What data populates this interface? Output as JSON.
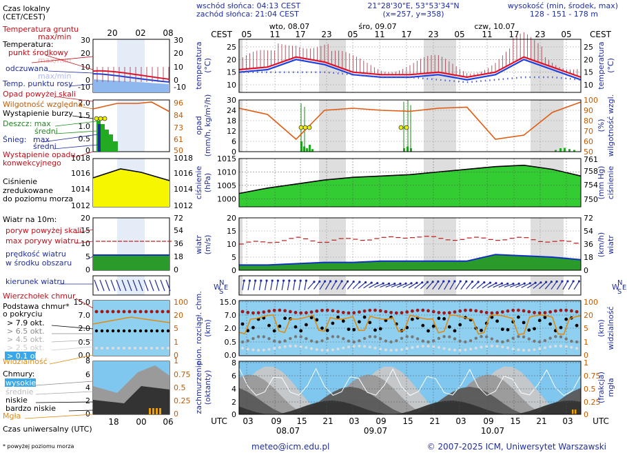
{
  "header": {
    "sunrise": "wschód słońca: 04:13 CEST",
    "sunset": "zachód słońca: 21:04 CEST",
    "coords": "21°28'30\"E, 53°53'34\"N",
    "grid": "(x=257, y=358)",
    "alt_label": "wysokość (min, środek, max)",
    "alt_values": "128 - 151 - 178 m"
  },
  "time": {
    "cest_label": "CEST",
    "utc_label": "UTC",
    "day_labels_top": [
      "wto, 08.07",
      "śro, 09.07",
      "czw, 10.07"
    ],
    "day_labels_bottom": [
      "08.07",
      "09.07",
      "10.07"
    ],
    "cest_ticks": [
      "05",
      "11",
      "17",
      "23",
      "05",
      "11",
      "17",
      "23",
      "05",
      "11",
      "17",
      "23",
      "05"
    ],
    "utc_ticks": [
      "03",
      "09",
      "15",
      "21",
      "03",
      "09",
      "15",
      "21",
      "03",
      "09",
      "15",
      "21",
      "03"
    ],
    "legend_top_ticks": [
      "20",
      "02",
      "08"
    ],
    "legend_bottom_ticks": [
      "18",
      "00",
      "06"
    ]
  },
  "legend": {
    "local_time": "Czas lokalny",
    "local_time2": "(CET/CEST)",
    "soil_temp": "Temperatura gruntu",
    "maxmin": "max/min",
    "temperature": "Temperatura:",
    "midpoint": "punkt środkowy",
    "maxmin2": "max/min",
    "felt": "odczuwana",
    "maxmin3": "max/min",
    "dewpoint": "Temp. punktu rosy",
    "precip_above": "Opad powyżej skali",
    "humidity": "Wilgotność względna",
    "storm": "Wystąpienie burzy",
    "rain_max": "Deszcz: max",
    "rain_avg": "średni",
    "snow_max": "max",
    "snow": "Śnieg:",
    "snow_avg": "średni",
    "convective1": "Wystąpienie opadu",
    "convective2": "konwekcyjnego",
    "pressure1": "Ciśnienie",
    "pressure2": "zredukowane",
    "pressure3": "do poziomu morza",
    "wind10": "Wiatr na 10m:",
    "gust_above": "poryw powyżej skali",
    "max_gust": "max porywy wiatru",
    "wind_avg1": "prędkość wiatru",
    "wind_avg2": "w środku obszaru",
    "wind_dir": "kierunek wiatru",
    "cloud_top": "Wierzchołek chmur",
    "cloud_base1": "Podstawa chmur*",
    "cloud_base2": "o pokryciu",
    "okt79": "> 7.9 okt.",
    "okt65": "> 6.5 okt.",
    "okt45": "> 4.5 okt.",
    "okt25": "> 2.5 okt.",
    "okt01": "> 0.1 okt.",
    "visibility": "Widzialność",
    "clouds": "Chmury:",
    "high": "wysokie",
    "mid": "średnie",
    "low": "niskie",
    "vlow": "bardzo niskie",
    "fog": "Mgła",
    "utc_time": "Czas uniwersalny (UTC)",
    "footnote": "* powyżej poziomu morza"
  },
  "axes": {
    "temp_left": "temperatura",
    "temp_left2": "(°C)",
    "temp_right": "temperatura",
    "temp_right2": "(°C)",
    "temp_ticks": [
      "25",
      "20",
      "15",
      "10"
    ],
    "temp_ticks_legend": [
      "30",
      "20",
      "10",
      "0",
      "-10"
    ],
    "precip_left": "opad",
    "precip_left2": "(mm/h, kg/m²/h)",
    "precip_ticks": [
      "30",
      "24",
      "18",
      "12",
      "6",
      "0"
    ],
    "precip_ticks_legend": [
      "2.0",
      "1.5",
      "1.0",
      "0.5",
      "0"
    ],
    "hum_right": "wilgotność wzgl.",
    "hum_right2": "(%)",
    "hum_ticks": [
      "100",
      "90",
      "80",
      "70",
      "60",
      "50"
    ],
    "hum_ticks_legend": [
      "96",
      "84",
      "73",
      "61",
      "50"
    ],
    "press_left": "ciśnienie",
    "press_left2": "(hPa)",
    "press_ticks": [
      "1015",
      "1010",
      "1005",
      "1000"
    ],
    "press_ticks_legend": [
      "1018",
      "1016",
      "1014",
      "1012"
    ],
    "press_right": "ciśnienie",
    "press_right2": "(mm Hg)",
    "press_ticks_r": [
      "761",
      "758",
      "754",
      "750"
    ],
    "press_ticks_r_legend": [
      "1018",
      "1016",
      "1014",
      "1012"
    ],
    "wind_left": "wiatr",
    "wind_left2": "(m/s)",
    "wind_ticks": [
      "20",
      "15",
      "10",
      "5",
      "0"
    ],
    "wind_right": "wiatr",
    "wind_right2": "(km/h)",
    "wind_ticks_r": [
      "72",
      "54",
      "36",
      "18",
      "0"
    ],
    "cloud_left": "pion. rozciągł. chm.",
    "cloud_left2": "(km)",
    "cloud_ticks": [
      "15.0",
      "7.0",
      "2.0",
      "0.5",
      "0.0"
    ],
    "vis_right": "widzialność",
    "vis_right2": "(km)",
    "vis_ticks": [
      "100",
      "20",
      "5",
      "1",
      "0"
    ],
    "cov_left": "zachmurzenie",
    "cov_left2": "(oktanty)",
    "cov_ticks": [
      "8",
      "6",
      "4",
      "2",
      "0"
    ],
    "fog_right": "mgła",
    "fog_right2": "(frakcja)",
    "fog_ticks": [
      "1",
      "0.75",
      "0.5",
      "0.25",
      "0"
    ]
  },
  "footer": {
    "email": "meteo@icm.edu.pl",
    "copyright": "© 2007-2025 ICM, Uniwersytet Warszawski"
  },
  "colors": {
    "temp": "#e0102a",
    "felt": "#1f40e0",
    "dew": "#4050c8",
    "humidity": "#e05a10",
    "pressure_fill": "#33cc33",
    "wind_fill": "#2a9a2a",
    "sky": "#8fd0f0",
    "night": "#dedede"
  },
  "chart_data": [
    {
      "type": "line",
      "title": "temperatura",
      "ylabel": "(°C)",
      "ylim": [
        7,
        28
      ],
      "x": [
        "05",
        "11",
        "17",
        "23",
        "05",
        "11",
        "17",
        "23",
        "05",
        "11",
        "17",
        "23",
        "05"
      ],
      "series": [
        {
          "name": "punkt środkowy",
          "values": [
            16,
            17,
            21,
            19,
            15,
            14,
            14,
            15,
            13,
            15,
            21,
            17,
            13
          ]
        },
        {
          "name": "odczuwana",
          "values": [
            15,
            16,
            20,
            18,
            14,
            13,
            13,
            14,
            12,
            14,
            20,
            16,
            12
          ]
        },
        {
          "name": "Temp. punktu rosy",
          "values": [
            15,
            15,
            15,
            15,
            14,
            13,
            13,
            12,
            11,
            12,
            13,
            13,
            12
          ]
        }
      ]
    },
    {
      "type": "line",
      "title": "opad",
      "ylabel": "(mm/h, kg/m²/h)",
      "ylim": [
        0,
        30
      ],
      "x": [
        "05",
        "11",
        "17",
        "23",
        "05",
        "11",
        "17",
        "23",
        "05",
        "11",
        "17",
        "23",
        "05"
      ],
      "series": [
        {
          "name": "Wilgotność względna",
          "values": [
            92,
            86,
            62,
            90,
            92,
            90,
            89,
            92,
            93,
            62,
            66,
            88,
            98
          ]
        }
      ]
    },
    {
      "type": "area",
      "title": "ciśnienie",
      "ylabel": "(hPa)",
      "ylim": [
        997,
        1015
      ],
      "x": [
        "05",
        "11",
        "17",
        "23",
        "05",
        "11",
        "17",
        "23",
        "05",
        "11",
        "17",
        "23",
        "05"
      ],
      "series": [
        {
          "name": "Ciśnienie",
          "values": [
            1002,
            1004,
            1005.5,
            1007,
            1008,
            1008.5,
            1009,
            1010,
            1011,
            1012,
            1012.5,
            1011,
            1008.5
          ]
        }
      ]
    },
    {
      "type": "area",
      "title": "wiatr",
      "ylabel": "(m/s)",
      "ylim": [
        0,
        20
      ],
      "x": [
        "05",
        "11",
        "17",
        "23",
        "05",
        "11",
        "17",
        "23",
        "05",
        "11",
        "17",
        "23",
        "05"
      ],
      "series": [
        {
          "name": "prędkość wiatru",
          "values": [
            2,
            2,
            2.5,
            3,
            3,
            3.5,
            3.5,
            3.5,
            3.5,
            6,
            5.5,
            5,
            4
          ]
        },
        {
          "name": "max porywy wiatru",
          "values": [
            10,
            11,
            12,
            11,
            12,
            12,
            13,
            12,
            12,
            12,
            12,
            11,
            10
          ]
        }
      ]
    }
  ]
}
